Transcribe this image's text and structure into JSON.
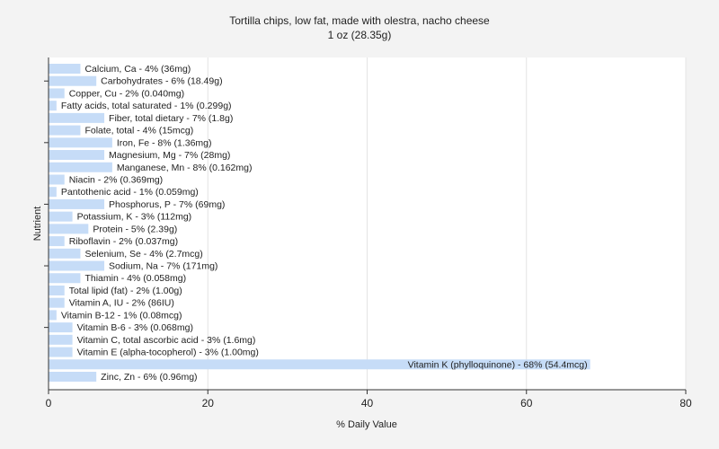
{
  "chart_data": {
    "type": "bar",
    "orientation": "horizontal",
    "title": "Tortilla chips, low fat, made with olestra, nacho cheese",
    "subtitle": "1 oz (28.35g)",
    "xlabel": "% Daily Value",
    "ylabel": "Nutrient",
    "xlim": [
      0,
      80
    ],
    "xticks": [
      0,
      20,
      40,
      60,
      80
    ],
    "grid": true,
    "bar_color": "#c6dcf7",
    "categories": [
      "Calcium, Ca - 4% (36mg)",
      "Carbohydrates - 6% (18.49g)",
      "Copper, Cu - 2% (0.040mg)",
      "Fatty acids, total saturated - 1% (0.299g)",
      "Fiber, total dietary - 7% (1.8g)",
      "Folate, total - 4% (15mcg)",
      "Iron, Fe - 8% (1.36mg)",
      "Magnesium, Mg - 7% (28mg)",
      "Manganese, Mn - 8% (0.162mg)",
      "Niacin - 2% (0.369mg)",
      "Pantothenic acid - 1% (0.059mg)",
      "Phosphorus, P - 7% (69mg)",
      "Potassium, K - 3% (112mg)",
      "Protein - 5% (2.39g)",
      "Riboflavin - 2% (0.037mg)",
      "Selenium, Se - 4% (2.7mcg)",
      "Sodium, Na - 7% (171mg)",
      "Thiamin - 4% (0.058mg)",
      "Total lipid (fat) - 2% (1.00g)",
      "Vitamin A, IU - 2% (86IU)",
      "Vitamin B-12 - 1% (0.08mcg)",
      "Vitamin B-6 - 3% (0.068mg)",
      "Vitamin C, total ascorbic acid - 3% (1.6mg)",
      "Vitamin E (alpha-tocopherol) - 3% (1.00mg)",
      "Vitamin K (phylloquinone) - 68% (54.4mcg)",
      "Zinc, Zn - 6% (0.96mg)"
    ],
    "values": [
      4,
      6,
      2,
      1,
      7,
      4,
      8,
      7,
      8,
      2,
      1,
      7,
      3,
      5,
      2,
      4,
      7,
      4,
      2,
      2,
      1,
      3,
      3,
      3,
      68,
      6
    ]
  }
}
